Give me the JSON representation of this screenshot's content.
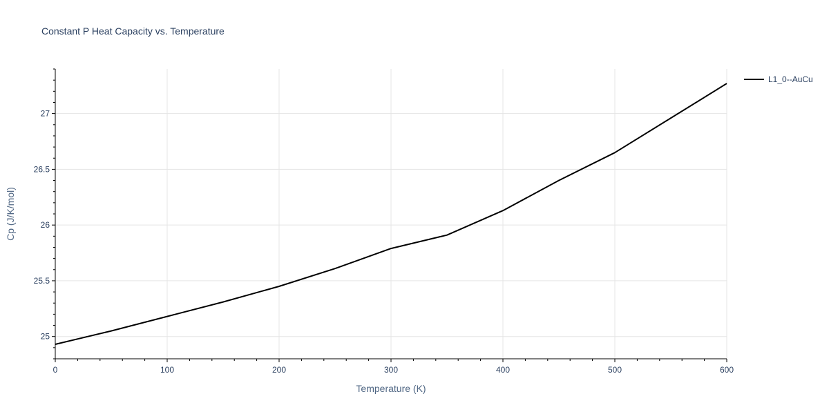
{
  "chart_data": {
    "type": "line",
    "title": "Constant P Heat Capacity vs. Temperature",
    "xlabel": "Temperature (K)",
    "ylabel": "Cp (J/K/mol)",
    "xlim": [
      0,
      600
    ],
    "ylim": [
      24.8,
      27.4
    ],
    "xticks": [
      0,
      100,
      200,
      300,
      400,
      500,
      600
    ],
    "yticks": [
      25,
      25.5,
      26,
      26.5,
      27
    ],
    "xtick_labels": [
      "0",
      "100",
      "200",
      "300",
      "400",
      "500",
      "600"
    ],
    "ytick_labels": [
      "25",
      "25.5",
      "26",
      "26.5",
      "27"
    ],
    "grid": true,
    "legend": "top-right",
    "series": [
      {
        "name": "L1_0--AuCu",
        "color": "#000000",
        "x": [
          0,
          50,
          100,
          150,
          200,
          250,
          300,
          350,
          400,
          450,
          500,
          550,
          600
        ],
        "y": [
          24.93,
          25.05,
          25.18,
          25.31,
          25.45,
          25.61,
          25.79,
          25.91,
          26.13,
          26.4,
          26.65,
          26.96,
          27.27
        ]
      }
    ]
  }
}
